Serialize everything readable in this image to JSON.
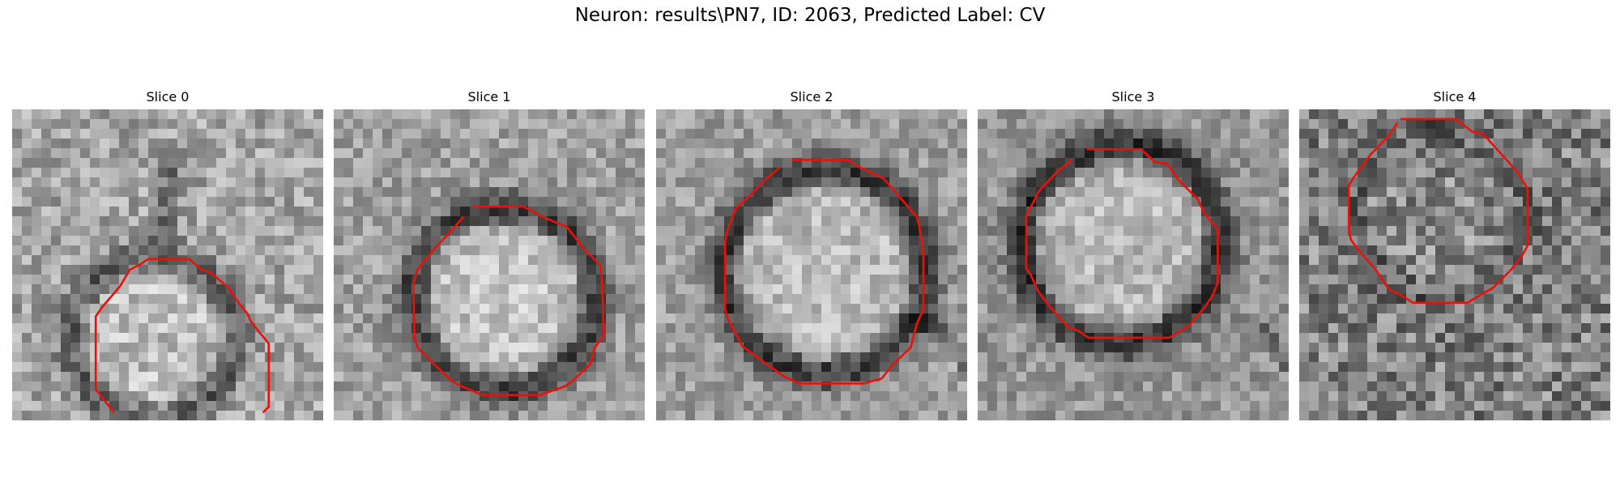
{
  "figure": {
    "title": "Neuron: results\\PN7, ID: 2063, Predicted Label: CV"
  },
  "colors": {
    "contour": "#e8120c",
    "background": "#ffffff"
  },
  "panels": [
    {
      "title": "Slice 0"
    },
    {
      "title": "Slice 1"
    },
    {
      "title": "Slice 2"
    },
    {
      "title": "Slice 3"
    },
    {
      "title": "Slice 4"
    }
  ]
}
